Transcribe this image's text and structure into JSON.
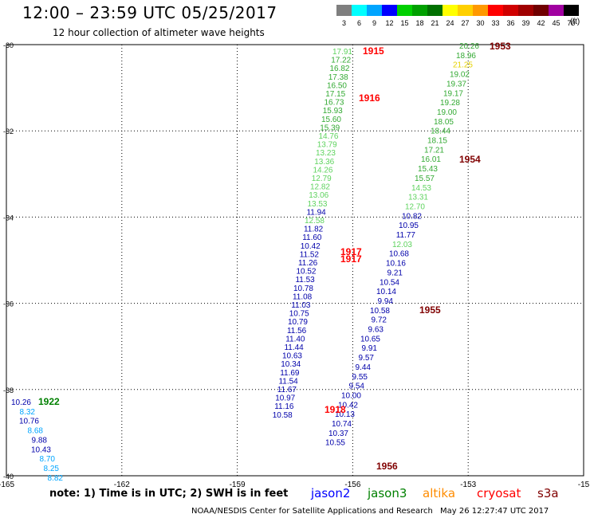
{
  "header": {
    "title": "12:00 – 23:59 UTC 05/25/2017",
    "subtitle": "12 hour collection of altimeter wave heights"
  },
  "legend": {
    "unit": "(ft)",
    "bins": [
      {
        "label": "3",
        "color": "#7f7f7f"
      },
      {
        "label": "6",
        "color": "#00ffff"
      },
      {
        "label": "9",
        "color": "#00a5ff"
      },
      {
        "label": "12",
        "color": "#0000ff"
      },
      {
        "label": "15",
        "color": "#00d000"
      },
      {
        "label": "18",
        "color": "#00a000"
      },
      {
        "label": "21",
        "color": "#007000"
      },
      {
        "label": "24",
        "color": "#ffff00"
      },
      {
        "label": "27",
        "color": "#ffd000"
      },
      {
        "label": "30",
        "color": "#ff9900"
      },
      {
        "label": "33",
        "color": "#ff0000"
      },
      {
        "label": "36",
        "color": "#d00000"
      },
      {
        "label": "39",
        "color": "#a00000"
      },
      {
        "label": "42",
        "color": "#700000"
      },
      {
        "label": "45",
        "color": "#a000a0"
      },
      {
        "label": "70",
        "color": "#000000"
      }
    ]
  },
  "map": {
    "lon_range": [
      -165,
      -150
    ],
    "lat_range": [
      -40,
      -30
    ],
    "lon_ticks": [
      "-165",
      "-162",
      "-159",
      "-156",
      "-153",
      "-15"
    ],
    "lat_ticks": [
      "-30",
      "-32",
      "-34",
      "-36",
      "-38",
      "-40"
    ],
    "grid": "dotted"
  },
  "tracks": [
    {
      "name": "track_156",
      "values": [
        {
          "v": "17.91",
          "c": "#5fd35f"
        },
        {
          "v": "17.22",
          "c": "#33aa33"
        },
        {
          "v": "16.82",
          "c": "#33aa33"
        },
        {
          "v": "17.38",
          "c": "#33aa33"
        },
        {
          "v": "16.50",
          "c": "#33aa33"
        },
        {
          "v": "17.15",
          "c": "#33aa33"
        },
        {
          "v": "16.73",
          "c": "#33aa33"
        },
        {
          "v": "15.93",
          "c": "#33aa33"
        },
        {
          "v": "15.60",
          "c": "#33aa33"
        },
        {
          "v": "15.39",
          "c": "#33aa33"
        },
        {
          "v": "14.76",
          "c": "#5fd35f"
        },
        {
          "v": "13.79",
          "c": "#5fd35f"
        },
        {
          "v": "13.23",
          "c": "#5fd35f"
        },
        {
          "v": "13.36",
          "c": "#5fd35f"
        },
        {
          "v": "14.26",
          "c": "#5fd35f"
        },
        {
          "v": "12.79",
          "c": "#5fd35f"
        },
        {
          "v": "12.82",
          "c": "#5fd35f"
        },
        {
          "v": "13.06",
          "c": "#5fd35f"
        },
        {
          "v": "13.53",
          "c": "#5fd35f"
        },
        {
          "v": "11.94",
          "c": "#0000aa"
        },
        {
          "v": "12.58",
          "c": "#5fd35f"
        },
        {
          "v": "11.82",
          "c": "#0000aa"
        },
        {
          "v": "11.60",
          "c": "#0000aa"
        },
        {
          "v": "10.42",
          "c": "#0000aa"
        },
        {
          "v": "11.52",
          "c": "#0000aa"
        },
        {
          "v": "11.26",
          "c": "#0000aa"
        },
        {
          "v": "10.52",
          "c": "#0000aa"
        },
        {
          "v": "11.53",
          "c": "#0000aa"
        },
        {
          "v": "10.78",
          "c": "#0000aa"
        },
        {
          "v": "11.08",
          "c": "#0000aa"
        },
        {
          "v": "11.03",
          "c": "#0000aa"
        },
        {
          "v": "10.75",
          "c": "#0000aa"
        },
        {
          "v": "10.79",
          "c": "#0000aa"
        },
        {
          "v": "11.56",
          "c": "#0000aa"
        },
        {
          "v": "11.40",
          "c": "#0000aa"
        },
        {
          "v": "11.44",
          "c": "#0000aa"
        },
        {
          "v": "10.63",
          "c": "#0000aa"
        },
        {
          "v": "10.34",
          "c": "#0000aa"
        },
        {
          "v": "11.69",
          "c": "#0000aa"
        },
        {
          "v": "11.54",
          "c": "#0000aa"
        },
        {
          "v": "11.67",
          "c": "#0000aa"
        },
        {
          "v": "10.97",
          "c": "#0000aa"
        },
        {
          "v": "11.16",
          "c": "#0000aa"
        },
        {
          "v": "10.58",
          "c": "#0000aa"
        }
      ]
    },
    {
      "name": "track_153",
      "values": [
        {
          "v": "20.26",
          "c": "#33aa33"
        },
        {
          "v": "18.96",
          "c": "#33aa33"
        },
        {
          "v": "21.25",
          "c": "#e6d200"
        },
        {
          "v": "19.02",
          "c": "#33aa33"
        },
        {
          "v": "19.37",
          "c": "#33aa33"
        },
        {
          "v": "19.17",
          "c": "#33aa33"
        },
        {
          "v": "19.28",
          "c": "#33aa33"
        },
        {
          "v": "19.00",
          "c": "#33aa33"
        },
        {
          "v": "18.05",
          "c": "#33aa33"
        },
        {
          "v": "18.44",
          "c": "#33aa33"
        },
        {
          "v": "18.15",
          "c": "#33aa33"
        },
        {
          "v": "17.21",
          "c": "#33aa33"
        },
        {
          "v": "16.01",
          "c": "#33aa33"
        },
        {
          "v": "15.43",
          "c": "#33aa33"
        },
        {
          "v": "15.57",
          "c": "#33aa33"
        },
        {
          "v": "14.53",
          "c": "#5fd35f"
        },
        {
          "v": "13.31",
          "c": "#5fd35f"
        },
        {
          "v": "12.70",
          "c": "#5fd35f"
        },
        {
          "v": "10.82",
          "c": "#0000aa"
        },
        {
          "v": "10.95",
          "c": "#0000aa"
        },
        {
          "v": "11.77",
          "c": "#0000aa"
        },
        {
          "v": "12.03",
          "c": "#5fd35f"
        },
        {
          "v": "10.68",
          "c": "#0000aa"
        },
        {
          "v": "10.16",
          "c": "#0000aa"
        },
        {
          "v": "9.21",
          "c": "#0000aa"
        },
        {
          "v": "10.54",
          "c": "#0000aa"
        },
        {
          "v": "10.14",
          "c": "#0000aa"
        },
        {
          "v": "9.94",
          "c": "#0000aa"
        },
        {
          "v": "10.58",
          "c": "#0000aa"
        },
        {
          "v": "9.72",
          "c": "#0000aa"
        },
        {
          "v": "9.63",
          "c": "#0000aa"
        },
        {
          "v": "10.65",
          "c": "#0000aa"
        },
        {
          "v": "9.91",
          "c": "#0000aa"
        },
        {
          "v": "9.57",
          "c": "#0000aa"
        },
        {
          "v": "9.44",
          "c": "#0000aa"
        },
        {
          "v": "9.55",
          "c": "#0000aa"
        },
        {
          "v": "9.54",
          "c": "#0000aa"
        },
        {
          "v": "10.00",
          "c": "#0000aa"
        },
        {
          "v": "10.42",
          "c": "#0000aa"
        },
        {
          "v": "10.13",
          "c": "#0000aa"
        },
        {
          "v": "10.74",
          "c": "#0000aa"
        },
        {
          "v": "10.37",
          "c": "#0000aa"
        },
        {
          "v": "10.55",
          "c": "#0000aa"
        }
      ]
    },
    {
      "name": "track_165",
      "values": [
        {
          "v": "10.26",
          "c": "#0000aa"
        },
        {
          "v": "8.32",
          "c": "#00a5ff"
        },
        {
          "v": "10.76",
          "c": "#0000aa"
        },
        {
          "v": "8.68",
          "c": "#00a5ff"
        },
        {
          "v": "9.88",
          "c": "#0000aa"
        },
        {
          "v": "10.43",
          "c": "#0000aa"
        },
        {
          "v": "8.70",
          "c": "#00a5ff"
        },
        {
          "v": "8.25",
          "c": "#00a5ff"
        },
        {
          "v": "8.82",
          "c": "#00a5ff"
        }
      ]
    }
  ],
  "time_labels": [
    {
      "text": "1915",
      "color": "#ff0000"
    },
    {
      "text": "1916",
      "color": "#ff0000"
    },
    {
      "text": "1917",
      "color": "#ff0000"
    },
    {
      "text": "1917",
      "color": "#ff0000"
    },
    {
      "text": "1918",
      "color": "#ff0000"
    },
    {
      "text": "1953",
      "color": "#800000"
    },
    {
      "text": "1954",
      "color": "#800000"
    },
    {
      "text": "1955",
      "color": "#800000"
    },
    {
      "text": "1956",
      "color": "#800000"
    },
    {
      "text": "1922",
      "color": "#008000"
    }
  ],
  "footer": {
    "note": "note:  1) Time is in UTC;  2) SWH is in feet",
    "satellites": [
      {
        "name": "jason2",
        "color": "#0000ff"
      },
      {
        "name": "jason3",
        "color": "#008000"
      },
      {
        "name": "altika",
        "color": "#ff8c00"
      },
      {
        "name": "cryosat",
        "color": "#ff0000"
      },
      {
        "name": "s3a",
        "color": "#800000"
      }
    ],
    "credit": "NOAA/NESDIS Center for Satellite Applications and Research",
    "timestamp": "May 26 12:27:47 UTC 2017"
  }
}
